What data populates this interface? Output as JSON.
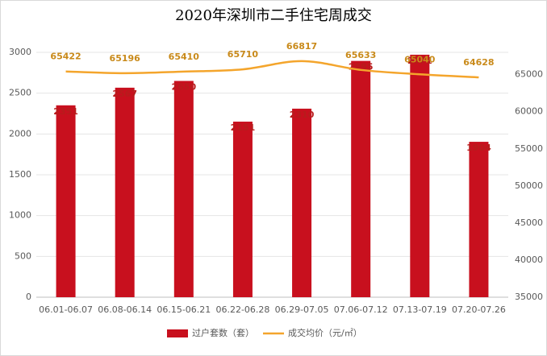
{
  "chart_data": {
    "type": "bar-line",
    "title": "2020年深圳市二手住宅周成交",
    "categories": [
      "06.01-06.07",
      "06.08-06.14",
      "06.15-06.21",
      "06.22-06.28",
      "06.29-07.05",
      "07.06-07.12",
      "07.13-07.19",
      "07.20-07.26"
    ],
    "series": [
      {
        "name": "过户套数（套）",
        "color": "#c8101e",
        "values": [
          2351,
          2567,
          2650,
          2151,
          2310,
          2895,
          2971,
          1904
        ]
      },
      {
        "name": "成交均价（元/㎡）",
        "color": "#f4a52c",
        "axis": "y2",
        "values": [
          65422,
          65196,
          65410,
          65710,
          66817,
          65633,
          65040,
          64628
        ]
      }
    ],
    "ylim": [
      0,
      3000
    ],
    "yticks": [
      0,
      500,
      1000,
      1500,
      2000,
      2500,
      3000
    ],
    "y2lim": [
      35000,
      68000
    ],
    "y2ticks": [
      35000,
      40000,
      45000,
      50000,
      55000,
      60000,
      65000
    ],
    "grid": true,
    "legend": "bottom"
  }
}
